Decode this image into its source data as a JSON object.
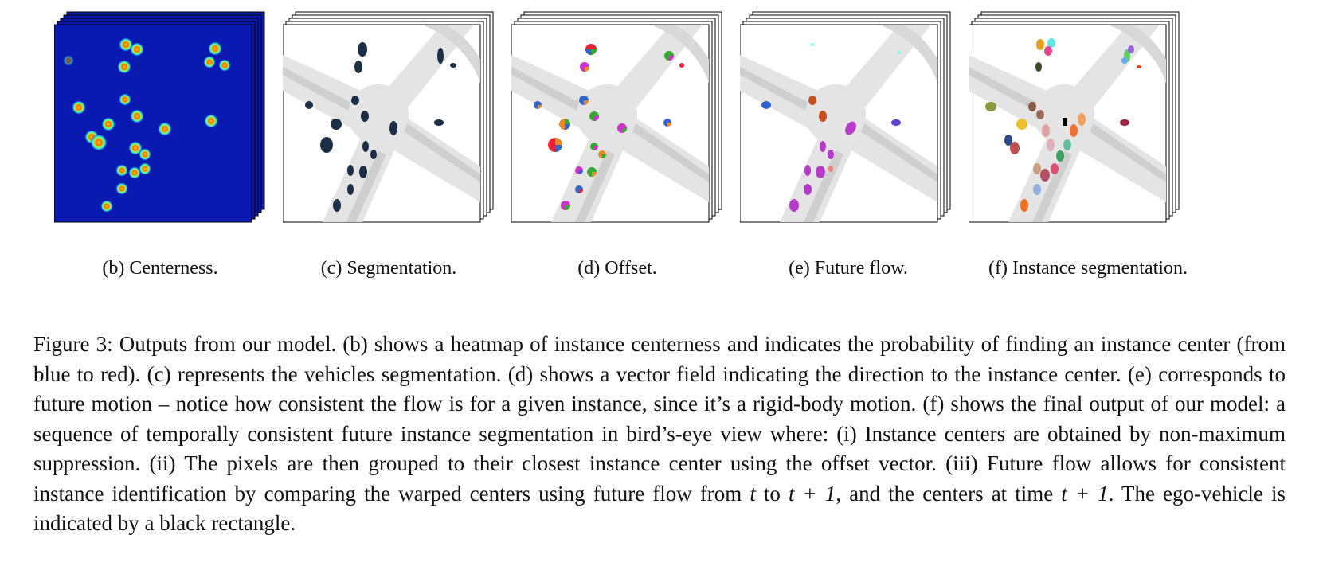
{
  "figure": {
    "subcaptions": {
      "b": "(b) Centerness.",
      "c": "(c) Segmentation.",
      "d": "(d) Offset.",
      "e": "(e) Future flow.",
      "f": "(f) Instance segmentation."
    },
    "caption": {
      "label": "Figure 3:",
      "text_1": " Outputs from our model. (b) shows a heatmap of instance centerness and indicates the probability of finding an instance center (from blue to red). (c) represents the vehicles segmentation. (d) shows a vector field indicating the direction to the instance center. (e) corresponds to future motion – notice how consistent the flow is for a given instance, since it’s a rigid-body motion. (f) shows the final output of our model: a sequence of temporally consistent future instance segmentation in bird’s-eye view where: (i) Instance centers are obtained by non-maximum suppression. (ii) The pixels are then grouped to their closest instance center using the offset vector. (iii) Future flow allows for consistent instance identification by comparing the warped centers using future flow from ",
      "math_t": "t",
      "text_2": " to ",
      "math_t1": "t + 1",
      "text_3": ", and the centers at time ",
      "math_t2": "t + 1",
      "text_4": ". The ego-vehicle is indicated by a black rectangle."
    },
    "colors": {
      "heatmap_bg": "#0a1aa8",
      "road": "#e4e4e4",
      "lane": "#cfcfcf",
      "segmentation": "#1c2f48",
      "flow": "#b43cc8"
    }
  }
}
